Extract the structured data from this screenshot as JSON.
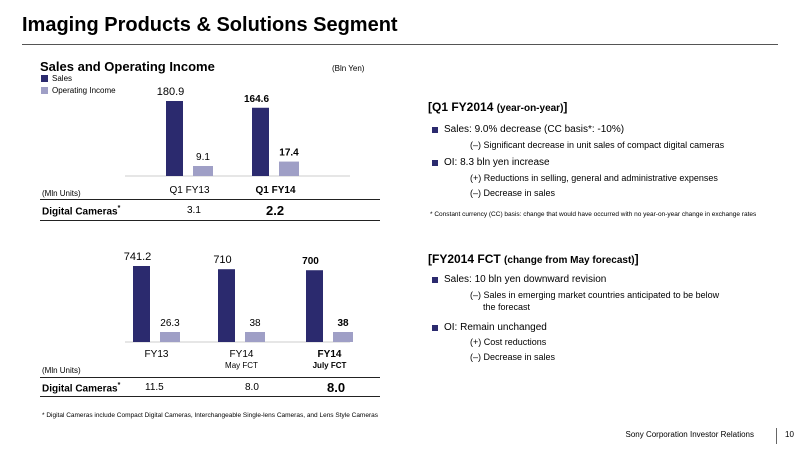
{
  "page": {
    "title": "Imaging Products & Solutions Segment",
    "footer": "Sony Corporation   Investor Relations",
    "page_number": "10"
  },
  "colors": {
    "sales": "#2b2a6e",
    "operating_income": "#9f9fc6",
    "bullet": "#2b2a6e"
  },
  "chart_data": [
    {
      "type": "bar",
      "title": "Sales and Operating Income",
      "unit": "(Bln Yen)",
      "categories": [
        "Q1 FY13",
        "Q1 FY14"
      ],
      "series": [
        {
          "name": "Sales",
          "values": [
            180.9,
            164.6
          ]
        },
        {
          "name": "Operating Income",
          "values": [
            9.1,
            17.4
          ]
        }
      ],
      "value_labels": {
        "sales": [
          "180.9",
          "164.6"
        ],
        "oi": [
          "9.1",
          "17.4"
        ]
      },
      "bold_category": [
        false,
        true
      ],
      "legend": "top-left"
    },
    {
      "type": "bar",
      "categories": [
        "FY13",
        "FY14 May FCT",
        "FY14 July FCT"
      ],
      "category_lines": [
        [
          "FY13",
          ""
        ],
        [
          "FY14",
          "May FCT"
        ],
        [
          "FY14",
          "July FCT"
        ]
      ],
      "series": [
        {
          "values": [
            741.2,
            710,
            700
          ]
        },
        {
          "values": [
            26.3,
            38,
            38
          ]
        }
      ],
      "value_labels": {
        "sales": [
          "741.2",
          "710",
          "700"
        ],
        "oi": [
          "26.3",
          "38",
          "38"
        ]
      },
      "bold_category": [
        false,
        false,
        true
      ]
    }
  ],
  "q1_cameras": {
    "units_label": "(Mln Units)",
    "label": "Digital Cameras",
    "star": "*",
    "values": [
      "3.1",
      "2.2"
    ]
  },
  "fy_cameras": {
    "units_label": "(Mln Units)",
    "label": "Digital Cameras",
    "star": "*",
    "values": [
      "11.5",
      "8.0",
      "8.0"
    ]
  },
  "q1_section": {
    "heading": "Q1 FY2014",
    "heading_small": "(year-on-year)",
    "sales_bullet": "Sales: 9.0% decrease (CC basis*:  -10%)",
    "sales_sub1": "(–)  Significant  decrease  in  unit  sales  of  compact  digital  cameras",
    "oi_bullet": "OI: 8.3 bln yen increase",
    "oi_sub1": "(+)  Reductions in selling, general and administrative expenses",
    "oi_sub2": "(–)  Decrease in sales",
    "note": "* Constant currency (CC) basis: change that would have occurred with no year-on-year change in exchange rates"
  },
  "fy_section": {
    "heading": "FY2014 FCT",
    "heading_small": "(change from May forecast)",
    "sales_bullet": "Sales:  10 bln yen downward revision",
    "sales_sub1": "(–)  Sales  in  emerging  market  countries  anticipated  to  be  below",
    "sales_sub1b": "the forecast",
    "oi_bullet": "OI: Remain unchanged",
    "oi_sub1": "(+) Cost reductions",
    "oi_sub2": "(–)  Decrease in sales"
  },
  "footnote": "*  Digital  Cameras  include  Compact  Digital  Cameras,  Interchangeable  Single-lens  Cameras,  and  Lens Style  Cameras"
}
